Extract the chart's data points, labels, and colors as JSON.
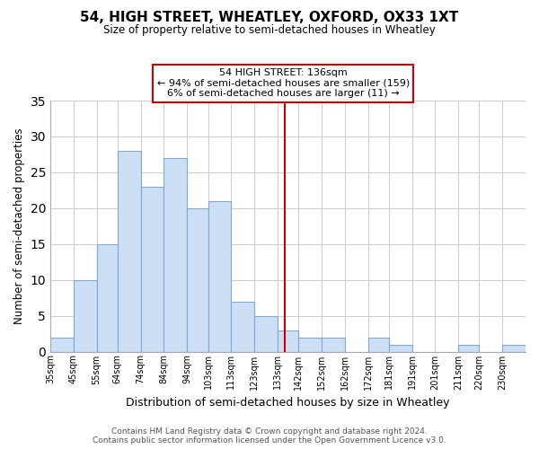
{
  "title": "54, HIGH STREET, WHEATLEY, OXFORD, OX33 1XT",
  "subtitle": "Size of property relative to semi-detached houses in Wheatley",
  "xlabel": "Distribution of semi-detached houses by size in Wheatley",
  "ylabel": "Number of semi-detached properties",
  "bin_labels": [
    "35sqm",
    "45sqm",
    "55sqm",
    "64sqm",
    "74sqm",
    "84sqm",
    "94sqm",
    "103sqm",
    "113sqm",
    "123sqm",
    "133sqm",
    "142sqm",
    "152sqm",
    "162sqm",
    "172sqm",
    "181sqm",
    "191sqm",
    "201sqm",
    "211sqm",
    "220sqm",
    "230sqm"
  ],
  "bin_edges": [
    35,
    45,
    55,
    64,
    74,
    84,
    94,
    103,
    113,
    123,
    133,
    142,
    152,
    162,
    172,
    181,
    191,
    201,
    211,
    220,
    230,
    240
  ],
  "counts": [
    2,
    10,
    15,
    28,
    23,
    27,
    20,
    21,
    7,
    5,
    3,
    2,
    2,
    0,
    2,
    1,
    0,
    0,
    1,
    0,
    1
  ],
  "bar_color": "#cddff4",
  "bar_edge_color": "#7ea8d8",
  "reference_line_x": 136,
  "reference_line_color": "#cc0000",
  "annotation_line1": "54 HIGH STREET: 136sqm",
  "annotation_line2": "← 94% of semi-detached houses are smaller (159)",
  "annotation_line3": "6% of semi-detached houses are larger (11) →",
  "ylim": [
    0,
    35
  ],
  "yticks": [
    0,
    5,
    10,
    15,
    20,
    25,
    30,
    35
  ],
  "background_color": "#ffffff",
  "grid_color": "#cccccc",
  "footer_line1": "Contains HM Land Registry data © Crown copyright and database right 2024.",
  "footer_line2": "Contains public sector information licensed under the Open Government Licence v3.0."
}
